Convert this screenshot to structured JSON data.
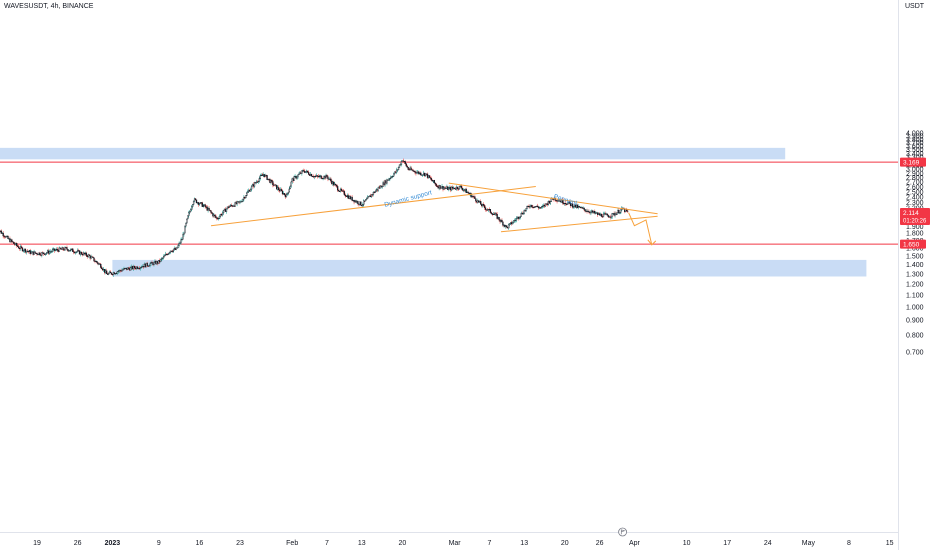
{
  "header": {
    "symbol_label": "WAVESUSDT, 4h, BINANCE"
  },
  "price_axis": {
    "currency": "USDT"
  },
  "chart_data": {
    "type": "candlestick",
    "symbol": "WAVESUSDT",
    "interval": "4h",
    "exchange": "BINANCE",
    "y_axis": {
      "scale": "log",
      "ylim": [
        0.66,
        4.1
      ],
      "ticks": [
        "0.700",
        "0.800",
        "0.900",
        "1.000",
        "1.100",
        "1.200",
        "1.300",
        "1.400",
        "1.500",
        "1.600",
        "1.700",
        "1.800",
        "1.900",
        "2.000",
        "2.100",
        "2.200",
        "2.300",
        "2.400",
        "2.500",
        "2.600",
        "2.700",
        "2.800",
        "2.900",
        "3.000",
        "3.100",
        "3.200",
        "3.300",
        "3.400",
        "3.500",
        "3.600",
        "3.700",
        "3.800",
        "3.900",
        "4.000"
      ]
    },
    "x_axis": {
      "labels": [
        {
          "label": "19",
          "date": "2022-12-19",
          "bold": false
        },
        {
          "label": "26",
          "date": "2022-12-26",
          "bold": false
        },
        {
          "label": "2023",
          "date": "2023-01-01",
          "bold": true
        },
        {
          "label": "9",
          "date": "2023-01-09",
          "bold": false
        },
        {
          "label": "16",
          "date": "2023-01-16",
          "bold": false
        },
        {
          "label": "23",
          "date": "2023-01-23",
          "bold": false
        },
        {
          "label": "Feb",
          "date": "2023-02-01",
          "bold": false
        },
        {
          "label": "7",
          "date": "2023-02-07",
          "bold": false
        },
        {
          "label": "13",
          "date": "2023-02-13",
          "bold": false
        },
        {
          "label": "20",
          "date": "2023-02-20",
          "bold": false
        },
        {
          "label": "Mar",
          "date": "2023-03-01",
          "bold": false
        },
        {
          "label": "7",
          "date": "2023-03-07",
          "bold": false
        },
        {
          "label": "13",
          "date": "2023-03-13",
          "bold": false
        },
        {
          "label": "20",
          "date": "2023-03-20",
          "bold": false
        },
        {
          "label": "26",
          "date": "2023-03-26",
          "bold": false
        },
        {
          "label": "Apr",
          "date": "2023-04-01",
          "bold": false
        },
        {
          "label": "10",
          "date": "2023-04-10",
          "bold": false
        },
        {
          "label": "17",
          "date": "2023-04-17",
          "bold": false
        },
        {
          "label": "24",
          "date": "2023-04-24",
          "bold": false
        },
        {
          "label": "May",
          "date": "2023-05-01",
          "bold": false
        },
        {
          "label": "8",
          "date": "2023-05-08",
          "bold": false
        },
        {
          "label": "15",
          "date": "2023-05-15",
          "bold": false
        }
      ]
    },
    "price_path": [
      [
        "2022-12-12",
        1.88
      ],
      [
        "2022-12-14",
        1.72
      ],
      [
        "2022-12-16",
        1.6
      ],
      [
        "2022-12-18",
        1.54
      ],
      [
        "2022-12-20",
        1.53
      ],
      [
        "2022-12-22",
        1.57
      ],
      [
        "2022-12-24",
        1.59
      ],
      [
        "2022-12-26",
        1.55
      ],
      [
        "2022-12-28",
        1.5
      ],
      [
        "2022-12-30",
        1.39
      ],
      [
        "2022-12-31",
        1.3
      ],
      [
        "2023-01-01",
        1.31
      ],
      [
        "2023-01-03",
        1.35
      ],
      [
        "2023-01-05",
        1.37
      ],
      [
        "2023-01-07",
        1.4
      ],
      [
        "2023-01-09",
        1.43
      ],
      [
        "2023-01-11",
        1.57
      ],
      [
        "2023-01-12",
        1.58
      ],
      [
        "2023-01-13",
        1.72
      ],
      [
        "2023-01-14",
        2.05
      ],
      [
        "2023-01-15",
        2.35
      ],
      [
        "2023-01-17",
        2.22
      ],
      [
        "2023-01-19",
        2.02
      ],
      [
        "2023-01-21",
        2.22
      ],
      [
        "2023-01-23",
        2.3
      ],
      [
        "2023-01-25",
        2.6
      ],
      [
        "2023-01-27",
        2.88
      ],
      [
        "2023-01-29",
        2.62
      ],
      [
        "2023-01-31",
        2.42
      ],
      [
        "2023-02-01",
        2.75
      ],
      [
        "2023-02-03",
        2.96
      ],
      [
        "2023-02-05",
        2.82
      ],
      [
        "2023-02-07",
        2.82
      ],
      [
        "2023-02-09",
        2.55
      ],
      [
        "2023-02-11",
        2.38
      ],
      [
        "2023-02-13",
        2.26
      ],
      [
        "2023-02-15",
        2.48
      ],
      [
        "2023-02-17",
        2.7
      ],
      [
        "2023-02-19",
        2.95
      ],
      [
        "2023-02-20",
        3.24
      ],
      [
        "2023-02-21",
        3.0
      ],
      [
        "2023-02-23",
        2.9
      ],
      [
        "2023-02-24",
        2.88
      ],
      [
        "2023-02-26",
        2.62
      ],
      [
        "2023-02-28",
        2.56
      ],
      [
        "2023-03-02",
        2.6
      ],
      [
        "2023-03-04",
        2.42
      ],
      [
        "2023-03-06",
        2.22
      ],
      [
        "2023-03-08",
        2.08
      ],
      [
        "2023-03-10",
        1.88
      ],
      [
        "2023-03-12",
        2.05
      ],
      [
        "2023-03-14",
        2.25
      ],
      [
        "2023-03-16",
        2.2
      ],
      [
        "2023-03-18",
        2.38
      ],
      [
        "2023-03-20",
        2.3
      ],
      [
        "2023-03-22",
        2.22
      ],
      [
        "2023-03-24",
        2.15
      ],
      [
        "2023-03-26",
        2.08
      ],
      [
        "2023-03-28",
        2.07
      ],
      [
        "2023-03-30",
        2.18
      ],
      [
        "2023-03-31",
        2.114
      ]
    ],
    "current_price": {
      "value": 2.114,
      "label": "2.114",
      "countdown": "01:20:26"
    },
    "horizontal_levels": [
      {
        "value": 3.169,
        "label": "3.169",
        "color": "#f23645"
      },
      {
        "value": 1.65,
        "label": "1.650",
        "color": "#f23645"
      }
    ],
    "zones": [
      {
        "name": "supply-zone",
        "from_date": "2022-12-12",
        "to_date": "2023-04-27",
        "low": 3.24,
        "high": 3.55,
        "color": "#c9dcf5"
      },
      {
        "name": "demand-zone",
        "from_date": "2023-01-01",
        "to_date": "2023-05-11",
        "low": 1.275,
        "high": 1.455,
        "color": "#c9dcf5"
      }
    ],
    "trendlines": [
      {
        "name": "dynamic-support-line",
        "from": [
          "2023-01-18",
          1.91
        ],
        "to": [
          "2023-03-15",
          2.61
        ],
        "color": "#f7a13b"
      },
      {
        "name": "pennant-upper-line",
        "from": [
          "2023-02-28",
          2.68
        ],
        "to": [
          "2023-04-05",
          2.1
        ],
        "color": "#f7a13b"
      },
      {
        "name": "pennant-lower-line",
        "from": [
          "2023-03-09",
          1.82
        ],
        "to": [
          "2023-04-05",
          2.06
        ],
        "color": "#f7a13b"
      },
      {
        "name": "projection-arrow",
        "points": [
          [
            "2023-03-31",
            2.12
          ],
          [
            "2023-04-01",
            1.91
          ],
          [
            "2023-04-03",
            2.0
          ],
          [
            "2023-04-04",
            1.64
          ]
        ],
        "color": "#f7a13b"
      }
    ],
    "annotations": [
      {
        "name": "dynamic-support-label",
        "text": "Dynamic support",
        "at": [
          "2023-02-17",
          2.22
        ],
        "color": "#3b8fd6"
      },
      {
        "name": "pennant-label",
        "text": "Pennant",
        "at": [
          "2023-03-18",
          2.38
        ],
        "color": "#3b8fd6"
      }
    ]
  },
  "footer": {
    "event_badge_icon": "flag-icon"
  }
}
